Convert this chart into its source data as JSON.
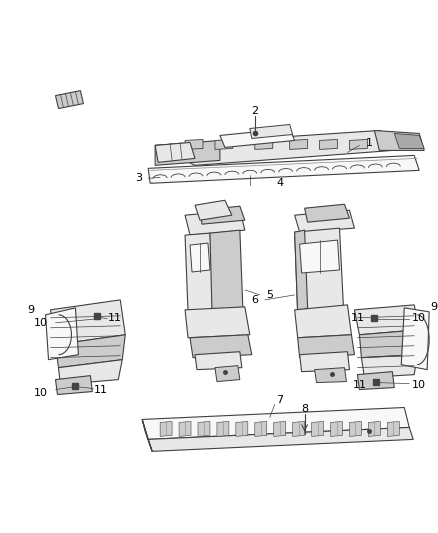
{
  "bg": "#ffffff",
  "lc": "#404040",
  "lc2": "#888888",
  "fill_light": "#e8e8e8",
  "fill_mid": "#cccccc",
  "fill_dark": "#aaaaaa",
  "fill_white": "#f8f8f8",
  "label_fs": 8,
  "label_color": "#000000",
  "fig_w": 4.38,
  "fig_h": 5.33,
  "dpi": 100
}
